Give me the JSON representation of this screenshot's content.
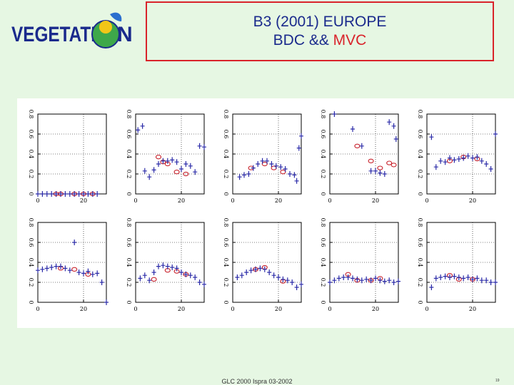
{
  "logo": {
    "text_left": "VEGETATI",
    "text_right": "N",
    "colors": {
      "text": "#1a2a8c",
      "globe": "#3ea84a",
      "sun": "#f2c618",
      "leaf": "#2b6fcf"
    }
  },
  "title": {
    "line1": "B3 (2001) EUROPE",
    "line2_prefix": "BDC && ",
    "line2_highlight": "MVC"
  },
  "footer": {
    "text": "GLC 2000 Ispra 03-2002",
    "page": "19"
  },
  "colors": {
    "bdc": "#2a2aa8",
    "mvc": "#c8202a",
    "background": "#e6f7e3",
    "border": "#d9232a"
  },
  "chart_data": {
    "type": "scatter",
    "layout": "2x5 small multiples",
    "series_markers": {
      "BDC": "plus",
      "MVC": "circle"
    },
    "xlim": [
      0,
      30
    ],
    "ylim": [
      0,
      0.8
    ],
    "xticks": [
      {
        "v": 0,
        "label": "0"
      },
      {
        "v": 20,
        "label": "20"
      }
    ],
    "yticks": [
      {
        "v": 0,
        "label": "0"
      },
      {
        "v": 0.2,
        "label": "0.2"
      },
      {
        "v": 0.4,
        "label": "0.4"
      },
      {
        "v": 0.6,
        "label": "0.6"
      },
      {
        "v": 0.8,
        "label": "0.8"
      }
    ],
    "grid": "dotted at x=20, y=0.2/0.4/0.6",
    "panels": [
      {
        "bdc": [
          [
            0,
            0
          ],
          [
            2,
            0
          ],
          [
            4,
            0
          ],
          [
            6,
            0
          ],
          [
            8,
            0
          ],
          [
            10,
            0
          ],
          [
            12,
            0
          ],
          [
            14,
            0
          ],
          [
            16,
            0
          ],
          [
            18,
            0
          ],
          [
            20,
            0
          ],
          [
            22,
            0
          ],
          [
            24,
            0
          ],
          [
            26,
            0
          ]
        ],
        "mvc": [
          [
            8,
            0
          ],
          [
            10,
            0
          ],
          [
            16,
            0
          ],
          [
            20,
            0
          ],
          [
            24,
            0
          ]
        ]
      },
      {
        "bdc": [
          [
            1,
            0.64
          ],
          [
            3,
            0.68
          ],
          [
            4,
            0.23
          ],
          [
            6,
            0.17
          ],
          [
            8,
            0.24
          ],
          [
            10,
            0.3
          ],
          [
            12,
            0.33
          ],
          [
            14,
            0.33
          ],
          [
            16,
            0.34
          ],
          [
            18,
            0.32
          ],
          [
            20,
            0.25
          ],
          [
            22,
            0.3
          ],
          [
            24,
            0.28
          ],
          [
            26,
            0.22
          ],
          [
            28,
            0.48
          ],
          [
            30,
            0.47
          ]
        ],
        "mvc": [
          [
            10,
            0.37
          ],
          [
            12,
            0.32
          ],
          [
            14,
            0.3
          ],
          [
            18,
            0.22
          ],
          [
            22,
            0.2
          ]
        ]
      },
      {
        "bdc": [
          [
            3,
            0.17
          ],
          [
            5,
            0.19
          ],
          [
            7,
            0.2
          ],
          [
            9,
            0.26
          ],
          [
            11,
            0.3
          ],
          [
            13,
            0.33
          ],
          [
            15,
            0.33
          ],
          [
            17,
            0.3
          ],
          [
            19,
            0.28
          ],
          [
            21,
            0.27
          ],
          [
            23,
            0.25
          ],
          [
            25,
            0.2
          ],
          [
            27,
            0.19
          ],
          [
            28,
            0.13
          ],
          [
            29,
            0.46
          ],
          [
            30,
            0.58
          ]
        ],
        "mvc": [
          [
            8,
            0.26
          ],
          [
            14,
            0.3
          ],
          [
            18,
            0.26
          ],
          [
            22,
            0.22
          ]
        ]
      },
      {
        "bdc": [
          [
            2,
            0.8
          ],
          [
            10,
            0.65
          ],
          [
            14,
            0.48
          ],
          [
            18,
            0.23
          ],
          [
            20,
            0.23
          ],
          [
            22,
            0.21
          ],
          [
            24,
            0.2
          ],
          [
            26,
            0.72
          ],
          [
            28,
            0.68
          ],
          [
            29,
            0.55
          ]
        ],
        "mvc": [
          [
            12,
            0.48
          ],
          [
            18,
            0.33
          ],
          [
            22,
            0.26
          ],
          [
            26,
            0.31
          ],
          [
            28,
            0.29
          ]
        ]
      },
      {
        "bdc": [
          [
            2,
            0.57
          ],
          [
            4,
            0.27
          ],
          [
            6,
            0.33
          ],
          [
            8,
            0.32
          ],
          [
            10,
            0.36
          ],
          [
            12,
            0.34
          ],
          [
            14,
            0.35
          ],
          [
            16,
            0.36
          ],
          [
            18,
            0.38
          ],
          [
            20,
            0.36
          ],
          [
            22,
            0.37
          ],
          [
            24,
            0.33
          ],
          [
            26,
            0.3
          ],
          [
            28,
            0.25
          ],
          [
            30,
            0.6
          ]
        ],
        "mvc": [
          [
            10,
            0.33
          ],
          [
            16,
            0.37
          ],
          [
            22,
            0.35
          ]
        ]
      },
      {
        "bdc": [
          [
            0,
            0.32
          ],
          [
            2,
            0.33
          ],
          [
            4,
            0.34
          ],
          [
            6,
            0.35
          ],
          [
            8,
            0.36
          ],
          [
            10,
            0.36
          ],
          [
            12,
            0.34
          ],
          [
            14,
            0.32
          ],
          [
            16,
            0.6
          ],
          [
            18,
            0.3
          ],
          [
            20,
            0.29
          ],
          [
            22,
            0.31
          ],
          [
            24,
            0.28
          ],
          [
            26,
            0.29
          ],
          [
            28,
            0.2
          ],
          [
            30,
            0.0
          ]
        ],
        "mvc": [
          [
            10,
            0.34
          ],
          [
            16,
            0.33
          ],
          [
            22,
            0.28
          ]
        ]
      },
      {
        "bdc": [
          [
            2,
            0.24
          ],
          [
            4,
            0.27
          ],
          [
            6,
            0.22
          ],
          [
            8,
            0.3
          ],
          [
            10,
            0.36
          ],
          [
            12,
            0.37
          ],
          [
            14,
            0.36
          ],
          [
            16,
            0.35
          ],
          [
            18,
            0.34
          ],
          [
            20,
            0.3
          ],
          [
            22,
            0.28
          ],
          [
            24,
            0.27
          ],
          [
            26,
            0.25
          ],
          [
            28,
            0.2
          ],
          [
            30,
            0.18
          ]
        ],
        "mvc": [
          [
            8,
            0.23
          ],
          [
            14,
            0.32
          ],
          [
            18,
            0.31
          ],
          [
            22,
            0.28
          ]
        ]
      },
      {
        "bdc": [
          [
            2,
            0.25
          ],
          [
            4,
            0.27
          ],
          [
            6,
            0.3
          ],
          [
            8,
            0.32
          ],
          [
            10,
            0.33
          ],
          [
            12,
            0.34
          ],
          [
            14,
            0.33
          ],
          [
            16,
            0.3
          ],
          [
            18,
            0.27
          ],
          [
            20,
            0.25
          ],
          [
            22,
            0.23
          ],
          [
            24,
            0.22
          ],
          [
            26,
            0.2
          ],
          [
            28,
            0.15
          ],
          [
            30,
            0.18
          ]
        ],
        "mvc": [
          [
            10,
            0.33
          ],
          [
            14,
            0.35
          ],
          [
            22,
            0.21
          ]
        ]
      },
      {
        "bdc": [
          [
            0,
            0.2
          ],
          [
            2,
            0.22
          ],
          [
            4,
            0.24
          ],
          [
            6,
            0.25
          ],
          [
            8,
            0.25
          ],
          [
            10,
            0.24
          ],
          [
            12,
            0.23
          ],
          [
            14,
            0.22
          ],
          [
            16,
            0.23
          ],
          [
            18,
            0.22
          ],
          [
            20,
            0.24
          ],
          [
            22,
            0.22
          ],
          [
            24,
            0.21
          ],
          [
            26,
            0.22
          ],
          [
            28,
            0.2
          ],
          [
            30,
            0.21
          ]
        ],
        "mvc": [
          [
            8,
            0.28
          ],
          [
            12,
            0.22
          ],
          [
            18,
            0.22
          ],
          [
            22,
            0.24
          ]
        ]
      },
      {
        "bdc": [
          [
            2,
            0.15
          ],
          [
            4,
            0.24
          ],
          [
            6,
            0.25
          ],
          [
            8,
            0.26
          ],
          [
            10,
            0.25
          ],
          [
            12,
            0.26
          ],
          [
            14,
            0.25
          ],
          [
            16,
            0.24
          ],
          [
            18,
            0.25
          ],
          [
            20,
            0.23
          ],
          [
            22,
            0.24
          ],
          [
            24,
            0.22
          ],
          [
            26,
            0.22
          ],
          [
            28,
            0.2
          ],
          [
            30,
            0.2
          ]
        ],
        "mvc": [
          [
            10,
            0.27
          ],
          [
            14,
            0.23
          ],
          [
            20,
            0.23
          ]
        ]
      }
    ]
  }
}
